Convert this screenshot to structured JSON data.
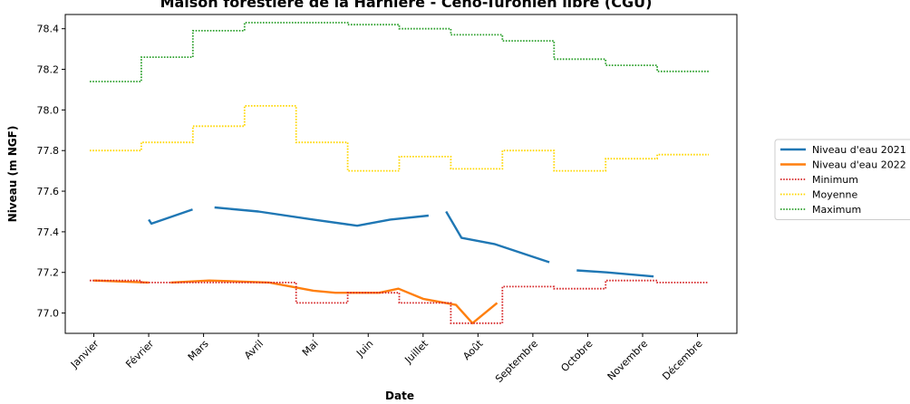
{
  "chart_data": {
    "type": "line",
    "title": "Maison forestière de la Harnière - Céno-Turonien libre (CGU)",
    "xlabel": "Date",
    "ylabel": "Niveau (m NGF)",
    "ylim": [
      76.9,
      78.47
    ],
    "yticks": [
      "77.0",
      "77.2",
      "77.4",
      "77.6",
      "77.8",
      "78.0",
      "78.2",
      "78.4"
    ],
    "ytick_values": [
      77.0,
      77.2,
      77.4,
      77.6,
      77.8,
      78.0,
      78.2,
      78.4
    ],
    "categories": [
      "Janvier",
      "Février",
      "Mars",
      "Avril",
      "Mai",
      "Juin",
      "Juillet",
      "Août",
      "Septembre",
      "Octobre",
      "Novembre",
      "Décembre"
    ],
    "legend_position": "outside-right",
    "grid": false,
    "series": [
      {
        "name": "Niveau d'eau 2021",
        "color": "#1f77b4",
        "style": "solid",
        "segments": [
          [
            [
              1.0,
              77.46
            ],
            [
              1.05,
              77.44
            ],
            [
              1.8,
              77.51
            ]
          ],
          [
            [
              2.2,
              77.52
            ],
            [
              3.0,
              77.5
            ],
            [
              4.0,
              77.46
            ],
            [
              4.8,
              77.43
            ],
            [
              5.4,
              77.46
            ],
            [
              6.1,
              77.48
            ]
          ],
          [
            [
              6.42,
              77.5
            ],
            [
              6.7,
              77.37
            ],
            [
              7.3,
              77.34
            ],
            [
              8.3,
              77.25
            ]
          ],
          [
            [
              8.8,
              77.21
            ],
            [
              9.35,
              77.2
            ],
            [
              10.2,
              77.18
            ]
          ]
        ]
      },
      {
        "name": "Niveau d'eau 2022",
        "color": "#ff7f0e",
        "style": "solid",
        "segments": [
          [
            [
              0,
              77.16
            ],
            [
              1.0,
              77.15
            ]
          ],
          [
            [
              1.4,
              77.15
            ],
            [
              2.1,
              77.16
            ],
            [
              3.2,
              77.15
            ],
            [
              4.0,
              77.11
            ],
            [
              4.4,
              77.1
            ],
            [
              5.2,
              77.1
            ],
            [
              5.55,
              77.12
            ],
            [
              6.0,
              77.07
            ],
            [
              6.6,
              77.04
            ],
            [
              6.9,
              76.95
            ],
            [
              7.35,
              77.05
            ]
          ]
        ]
      },
      {
        "name": "Minimum",
        "color": "#d62728",
        "style": "dotted",
        "steps": [
          77.16,
          77.15,
          77.15,
          77.15,
          77.05,
          77.1,
          77.05,
          76.95,
          77.13,
          77.12,
          77.16,
          77.15
        ]
      },
      {
        "name": "Moyenne",
        "color": "#ffd700",
        "style": "dotted",
        "steps": [
          77.8,
          77.84,
          77.92,
          78.02,
          77.84,
          77.7,
          77.77,
          77.71,
          77.8,
          77.7,
          77.76,
          77.78
        ]
      },
      {
        "name": "Maximum",
        "color": "#2ca02c",
        "style": "dotted",
        "steps": [
          78.14,
          78.26,
          78.39,
          78.43,
          78.43,
          78.42,
          78.4,
          78.37,
          78.34,
          78.25,
          78.22,
          78.19
        ]
      }
    ]
  }
}
